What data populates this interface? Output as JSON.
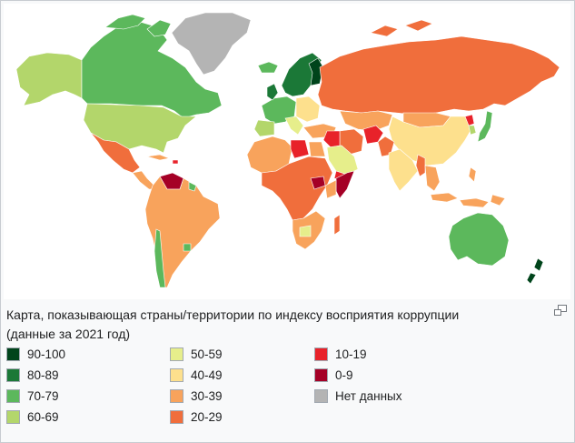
{
  "caption": {
    "line1": "Карта, показывающая страны/территории по индексу восприятия коррупции",
    "line2": "(данные за 2021 год)"
  },
  "enlarge_icon": "magnify-clip-icon",
  "legend": [
    {
      "label": "90-100",
      "color": "#00441b"
    },
    {
      "label": "80-89",
      "color": "#1b7837"
    },
    {
      "label": "70-79",
      "color": "#5cb85c"
    },
    {
      "label": "60-69",
      "color": "#b3d66b"
    },
    {
      "label": "50-59",
      "color": "#e6ee8b"
    },
    {
      "label": "40-49",
      "color": "#fde08d"
    },
    {
      "label": "30-39",
      "color": "#f8a35c"
    },
    {
      "label": "20-29",
      "color": "#f06e3c"
    },
    {
      "label": "10-19",
      "color": "#e8222a"
    },
    {
      "label": "0-9",
      "color": "#a50026"
    },
    {
      "label": "Нет данных",
      "color": "#b4b4b4"
    }
  ]
}
